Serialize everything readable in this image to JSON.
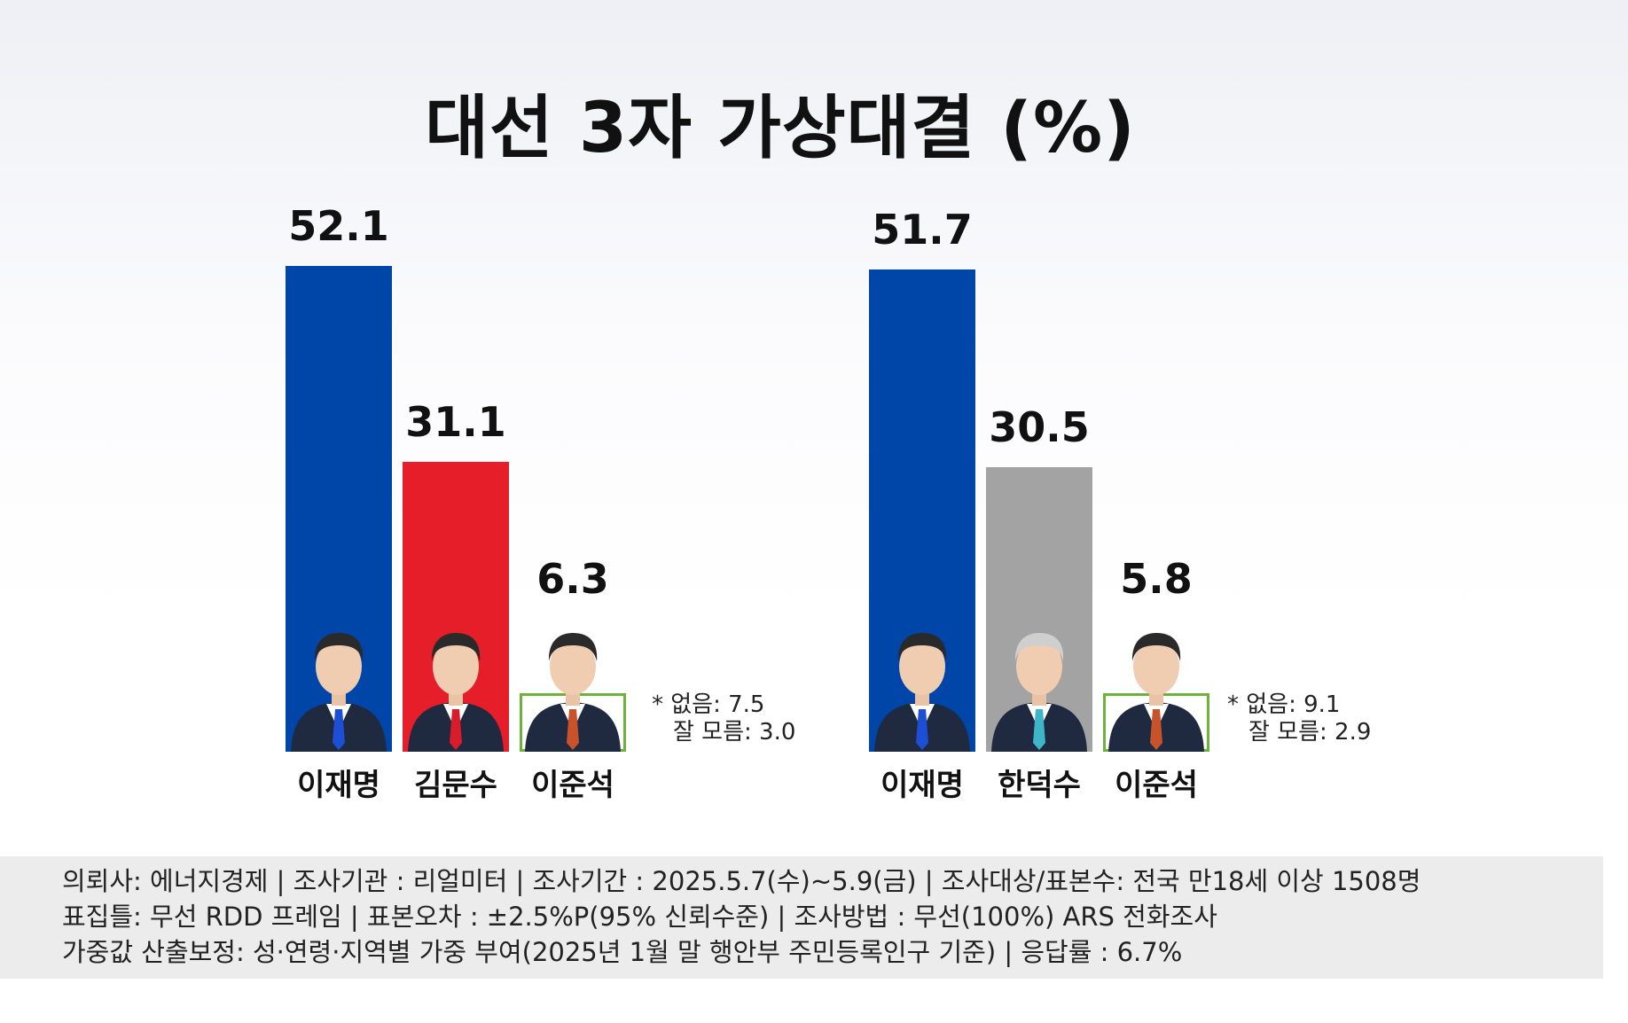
{
  "title": "대선 3자 가상대결 (%)",
  "chart_data": [
    {
      "type": "bar",
      "categories": [
        "이재명",
        "김문수",
        "이준석"
      ],
      "values": [
        52.1,
        31.1,
        6.3
      ],
      "colors": [
        "#0046a8",
        "#e51e2a",
        "#6fb23a"
      ],
      "ylim": [
        0,
        60
      ],
      "note": [
        "* 없음: 7.5",
        "잘 모름: 3.0"
      ]
    },
    {
      "type": "bar",
      "categories": [
        "이재명",
        "한덕수",
        "이준석"
      ],
      "values": [
        51.7,
        30.5,
        5.8
      ],
      "colors": [
        "#0046a8",
        "#a3a3a3",
        "#6fb23a"
      ],
      "ylim": [
        0,
        60
      ],
      "note": [
        "* 없음: 9.1",
        "잘 모름: 2.9"
      ]
    }
  ],
  "footer": {
    "lines": [
      "의뢰사: 에너지경제 | 조사기관 : 리얼미터  |  조사기간 : 2025.5.7(수)~5.9(금) | 조사대상/표본수: 전국 만18세 이상 1508명",
      "표집틀: 무선 RDD 프레임 | 표본오차 : ±2.5%P(95% 신뢰수준) | 조사방법 : 무선(100%) ARS 전화조사",
      "가중값 산출보정: 성·연령·지역별 가중 부여(2025년 1월 말 행안부 주민등록인구 기준) | 응답률 : 6.7%"
    ]
  }
}
